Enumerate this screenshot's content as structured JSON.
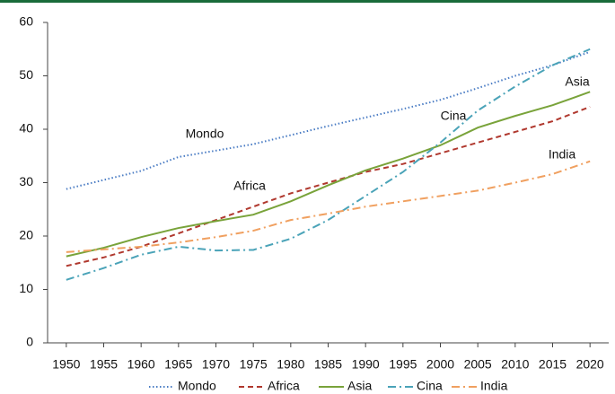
{
  "chart_data": {
    "type": "line",
    "x": [
      1950,
      1955,
      1960,
      1965,
      1970,
      1975,
      1980,
      1985,
      1990,
      1995,
      2000,
      2005,
      2010,
      2015,
      2020
    ],
    "xlim": [
      1947.5,
      2022.5
    ],
    "xticks": [
      1950,
      1955,
      1960,
      1965,
      1970,
      1975,
      1980,
      1985,
      1990,
      1995,
      2000,
      2005,
      2010,
      2015,
      2020
    ],
    "ylim": [
      0,
      60
    ],
    "yticks": [
      0,
      10,
      20,
      30,
      40,
      50,
      60
    ],
    "grid": false,
    "legend": "bottom",
    "series": [
      {
        "name": "Mondo",
        "color": "#4a7cc4",
        "dash": "dotted",
        "values": [
          28.8,
          30.5,
          32.2,
          34.8,
          36,
          37.2,
          38.9,
          40.6,
          42.2,
          43.8,
          45.5,
          47.7,
          50,
          52,
          54.5
        ]
      },
      {
        "name": "Africa",
        "color": "#b0382e",
        "dash": "dashed",
        "values": [
          14.4,
          16,
          18,
          20.5,
          23,
          25.5,
          28,
          30,
          32,
          33.5,
          35.5,
          37.5,
          39.5,
          41.5,
          44.2
        ]
      },
      {
        "name": "Asia",
        "color": "#79a33a",
        "dash": "solid",
        "values": [
          16.2,
          17.8,
          19.8,
          21.5,
          22.8,
          24,
          26.5,
          29.5,
          32.3,
          34.5,
          37,
          40.3,
          42.5,
          44.5,
          47
        ]
      },
      {
        "name": "Cina",
        "color": "#4aa3b8",
        "dash": "dashdot",
        "values": [
          11.8,
          14,
          16.5,
          18,
          17.3,
          17.4,
          19.5,
          23,
          27.5,
          32,
          37.5,
          43.5,
          48,
          52,
          55
        ]
      },
      {
        "name": "India",
        "color": "#f0a060",
        "dash": "dashdot",
        "values": [
          17,
          17.5,
          18,
          18.8,
          19.8,
          21,
          23,
          24.2,
          25.5,
          26.5,
          27.5,
          28.5,
          30,
          31.6,
          34
        ]
      }
    ],
    "annotations": [
      "Mondo",
      "Africa",
      "Asia",
      "Cina",
      "India"
    ]
  }
}
